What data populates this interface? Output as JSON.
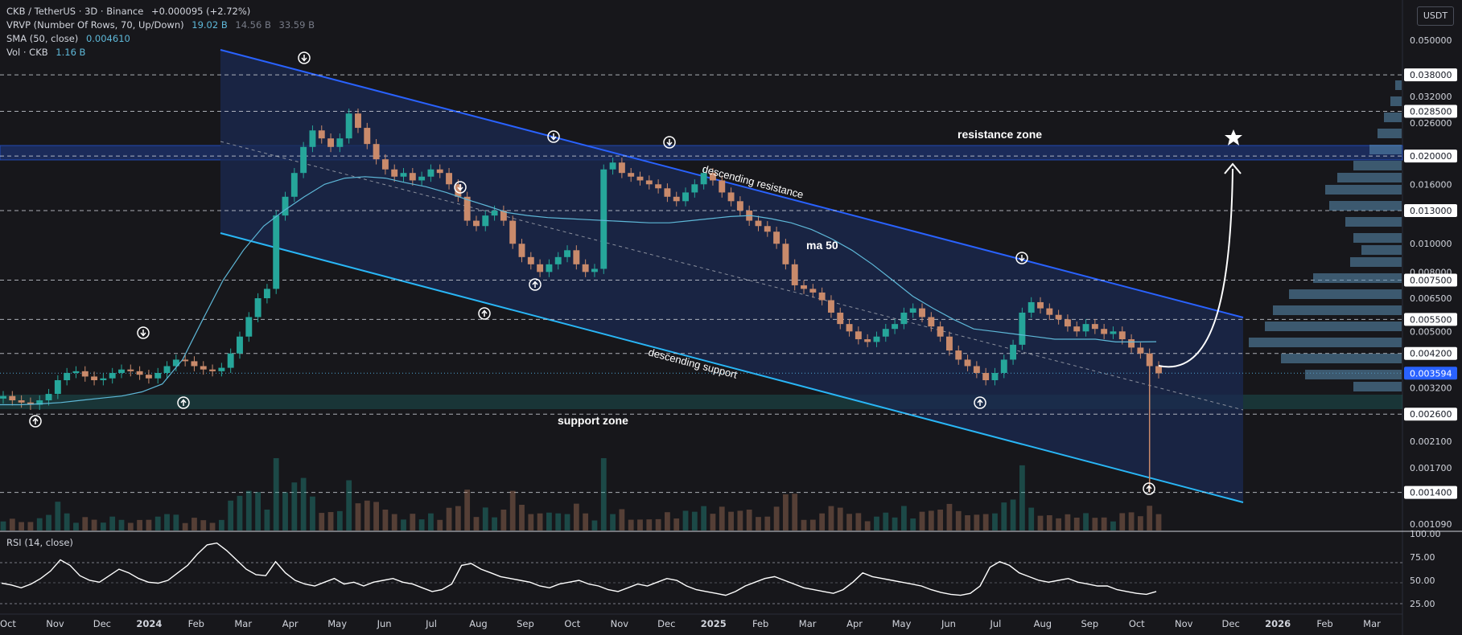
{
  "header": {
    "symbol_line": "CKB / TetherUS · 3D · Binance",
    "change": "+0.000095 (+2.72%)",
    "vrvp_label": "VRVP (Number Of Rows, 70, Up/Down)",
    "vrvp_values": [
      "19.02 B",
      "14.56 B",
      "33.59 B"
    ],
    "sma_label": "SMA (50, close)",
    "sma_value": "0.004610",
    "vol_label": "Vol · CKB",
    "vol_value": "1.16 B",
    "rsi_label": "RSI (14, close)",
    "currency_button": "USDT"
  },
  "chart_data": {
    "type": "candlestick",
    "price_axis": {
      "scale": "log",
      "ticks": [
        "0.050000",
        "0.032000",
        "0.026000",
        "0.016000",
        "0.010000",
        "0.008000",
        "0.006500",
        "0.005000",
        "0.003200",
        "0.002100",
        "0.001700",
        "0.001090"
      ],
      "level_labels": [
        "0.038000",
        "0.028500",
        "0.020000",
        "0.013000",
        "0.007500",
        "0.005500",
        "0.004200",
        "0.002600",
        "0.001400"
      ],
      "current_price": "0.003594"
    },
    "rsi_axis": {
      "ticks": [
        "100.00",
        "75.00",
        "50.00",
        "25.00"
      ]
    },
    "time_axis": [
      "Oct",
      "Nov",
      "Dec",
      "2024",
      "Feb",
      "Mar",
      "Apr",
      "May",
      "Jun",
      "Jul",
      "Aug",
      "Sep",
      "Oct",
      "Nov",
      "Dec",
      "2025",
      "Feb",
      "Mar",
      "Apr",
      "May",
      "Jun",
      "Jul",
      "Aug",
      "Sep",
      "Oct",
      "Nov",
      "Dec",
      "2026",
      "Feb",
      "Mar"
    ],
    "annotations": [
      "resistance zone",
      "support zone",
      "descending resistance",
      "descending support",
      "ma 50"
    ],
    "zones": [
      {
        "name": "resistance zone",
        "color": "#2962ff"
      },
      {
        "name": "support zone",
        "color": "#26a69a"
      }
    ],
    "colors": {
      "up": "#26a69a",
      "down": "#c98a6b",
      "sma": "#5eb8d8",
      "channel_top": "#2962ff",
      "channel_bottom": "#29b6f6",
      "channel_fill": "#1b2a52"
    },
    "series_close": [
      0.003,
      0.0029,
      0.00285,
      0.0028,
      0.0029,
      0.00305,
      0.0034,
      0.0036,
      0.00365,
      0.0035,
      0.0034,
      0.00345,
      0.0036,
      0.0037,
      0.00365,
      0.00355,
      0.00345,
      0.0036,
      0.0038,
      0.004,
      0.00395,
      0.0038,
      0.0037,
      0.00365,
      0.00375,
      0.0042,
      0.0048,
      0.0056,
      0.0065,
      0.007,
      0.0125,
      0.0145,
      0.0175,
      0.0215,
      0.0245,
      0.023,
      0.0215,
      0.023,
      0.028,
      0.025,
      0.022,
      0.0195,
      0.018,
      0.017,
      0.0175,
      0.0165,
      0.017,
      0.018,
      0.0175,
      0.016,
      0.0145,
      0.012,
      0.0115,
      0.0125,
      0.013,
      0.012,
      0.01,
      0.009,
      0.0085,
      0.008,
      0.0085,
      0.009,
      0.0095,
      0.0085,
      0.008,
      0.0082,
      0.018,
      0.019,
      0.0175,
      0.017,
      0.0165,
      0.016,
      0.0155,
      0.0145,
      0.014,
      0.015,
      0.016,
      0.0175,
      0.0165,
      0.015,
      0.014,
      0.013,
      0.012,
      0.0115,
      0.011,
      0.01,
      0.0085,
      0.0072,
      0.007,
      0.0068,
      0.0064,
      0.0058,
      0.0053,
      0.005,
      0.0047,
      0.0046,
      0.0048,
      0.0051,
      0.0053,
      0.0058,
      0.006,
      0.0056,
      0.0052,
      0.0048,
      0.0043,
      0.004,
      0.0038,
      0.0036,
      0.0034,
      0.0036,
      0.004,
      0.0045,
      0.0058,
      0.0063,
      0.006,
      0.0057,
      0.0055,
      0.0052,
      0.005,
      0.0053,
      0.0051,
      0.0049,
      0.005,
      0.0047,
      0.0044,
      0.0042,
      0.0038,
      0.00359
    ],
    "sma_50": [
      0.0028,
      0.0028,
      0.00282,
      0.00285,
      0.0029,
      0.00295,
      0.003,
      0.0031,
      0.0033,
      0.004,
      0.0055,
      0.0075,
      0.0095,
      0.0115,
      0.013,
      0.0145,
      0.016,
      0.0168,
      0.017,
      0.0168,
      0.0162,
      0.0157,
      0.015,
      0.0142,
      0.0135,
      0.0128,
      0.0125,
      0.0123,
      0.0122,
      0.0121,
      0.012,
      0.0119,
      0.0118,
      0.0118,
      0.012,
      0.0122,
      0.0124,
      0.0125,
      0.0122,
      0.0118,
      0.0112,
      0.0104,
      0.0095,
      0.0085,
      0.0075,
      0.0066,
      0.006,
      0.0055,
      0.0051,
      0.005,
      0.0049,
      0.0048,
      0.0047,
      0.0047,
      0.0047,
      0.0046,
      0.0046,
      0.00461
    ],
    "rsi_14": [
      47,
      45,
      42,
      46,
      52,
      60,
      72,
      66,
      55,
      50,
      48,
      55,
      62,
      58,
      52,
      48,
      47,
      50,
      58,
      66,
      78,
      88,
      90,
      82,
      72,
      62,
      56,
      55,
      70,
      58,
      50,
      46,
      44,
      48,
      52,
      46,
      48,
      44,
      48,
      50,
      52,
      48,
      46,
      42,
      38,
      40,
      46,
      66,
      68,
      62,
      58,
      54,
      52,
      50,
      48,
      44,
      42,
      46,
      48,
      50,
      46,
      44,
      40,
      38,
      42,
      46,
      44,
      48,
      52,
      50,
      44,
      40,
      38,
      36,
      34,
      38,
      44,
      48,
      52,
      54,
      50,
      46,
      42,
      40,
      38,
      36,
      40,
      48,
      58,
      54,
      52,
      50,
      48,
      46,
      44,
      40,
      37,
      35,
      34,
      36,
      44,
      64,
      70,
      66,
      58,
      54,
      50,
      48,
      50,
      52,
      48,
      46,
      44,
      44,
      40,
      38,
      36,
      35,
      38
    ]
  }
}
